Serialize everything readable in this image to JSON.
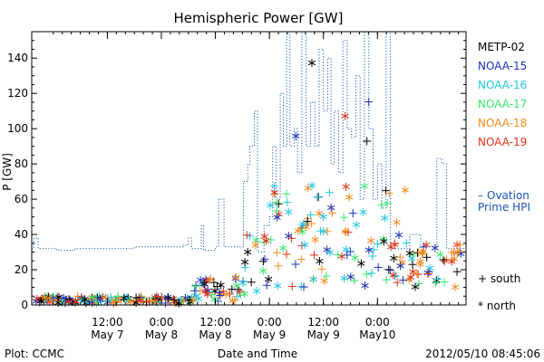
{
  "chart_data": {
    "type": "scatter",
    "title": "Hemispheric Power [GW]",
    "xlabel": "Date and Time",
    "ylabel": "P [GW]",
    "ylim": [
      0,
      155
    ],
    "yticks": [
      0,
      20,
      40,
      60,
      80,
      100,
      120,
      140
    ],
    "xlim": [
      -0.2,
      3.82
    ],
    "xtick_labels": [
      {
        "x": 0.5,
        "top": "12:00",
        "bottom": "May 7"
      },
      {
        "x": 1.0,
        "top": "0:00",
        "bottom": "May 8"
      },
      {
        "x": 1.5,
        "top": "12:00",
        "bottom": "May 8"
      },
      {
        "x": 2.0,
        "top": "0:00",
        "bottom": "May 9"
      },
      {
        "x": 2.5,
        "top": "12:00",
        "bottom": "May 9"
      },
      {
        "x": 3.0,
        "top": "0:00",
        "bottom": "May10"
      }
    ],
    "grid": false,
    "legend_position": "right",
    "footer_left": "Plot: CCMC",
    "footer_right": "2012/05/10 08:45:06",
    "marker_legend": [
      {
        "symbol": "+",
        "label": "south"
      },
      {
        "symbol": "*",
        "label": "north"
      }
    ],
    "series": [
      {
        "name": "METP-02",
        "color": "#000000"
      },
      {
        "name": "NOAA-15",
        "color": "#1a2fb5"
      },
      {
        "name": "NOAA-16",
        "color": "#1fc6dd"
      },
      {
        "name": "NOAA-17",
        "color": "#35e86a"
      },
      {
        "name": "NOAA-18",
        "color": "#f28b1e"
      },
      {
        "name": "NOAA-19",
        "color": "#e0321a"
      },
      {
        "name": "Ovation Prime HPI",
        "color": "#1a55b5",
        "style": "dotted-step",
        "points": [
          [
            -0.2,
            32
          ],
          [
            -0.18,
            38
          ],
          [
            -0.16,
            38
          ],
          [
            -0.14,
            32
          ],
          [
            0.03,
            31
          ],
          [
            0.2,
            32
          ],
          [
            0.6,
            32
          ],
          [
            0.75,
            33
          ],
          [
            1.0,
            33
          ],
          [
            1.2,
            34
          ],
          [
            1.25,
            38
          ],
          [
            1.28,
            32
          ],
          [
            1.35,
            32
          ],
          [
            1.37,
            45
          ],
          [
            1.39,
            31
          ],
          [
            1.5,
            33
          ],
          [
            1.53,
            60
          ],
          [
            1.56,
            60
          ],
          [
            1.58,
            33
          ],
          [
            1.75,
            33
          ],
          [
            1.76,
            70
          ],
          [
            1.8,
            80
          ],
          [
            1.82,
            90
          ],
          [
            1.86,
            110
          ],
          [
            1.89,
            30
          ],
          [
            1.95,
            45
          ],
          [
            2.0,
            50
          ],
          [
            2.03,
            90
          ],
          [
            2.06,
            60
          ],
          [
            2.1,
            120
          ],
          [
            2.13,
            90
          ],
          [
            2.16,
            155
          ],
          [
            2.19,
            90
          ],
          [
            2.23,
            100
          ],
          [
            2.26,
            75
          ],
          [
            2.3,
            155
          ],
          [
            2.34,
            90
          ],
          [
            2.38,
            115
          ],
          [
            2.42,
            90
          ],
          [
            2.46,
            145
          ],
          [
            2.5,
            110
          ],
          [
            2.54,
            140
          ],
          [
            2.57,
            80
          ],
          [
            2.6,
            110
          ],
          [
            2.64,
            75
          ],
          [
            2.68,
            150
          ],
          [
            2.72,
            100
          ],
          [
            2.76,
            95
          ],
          [
            2.8,
            130
          ],
          [
            2.84,
            60
          ],
          [
            2.88,
            155
          ],
          [
            2.92,
            100
          ],
          [
            2.96,
            60
          ],
          [
            3.0,
            80
          ],
          [
            3.04,
            55
          ],
          [
            3.08,
            155
          ],
          [
            3.12,
            32
          ],
          [
            3.2,
            32
          ],
          [
            3.3,
            40
          ],
          [
            3.4,
            33
          ],
          [
            3.5,
            33
          ],
          [
            3.55,
            83
          ],
          [
            3.6,
            80
          ],
          [
            3.64,
            32
          ],
          [
            3.82,
            32
          ]
        ]
      }
    ]
  }
}
